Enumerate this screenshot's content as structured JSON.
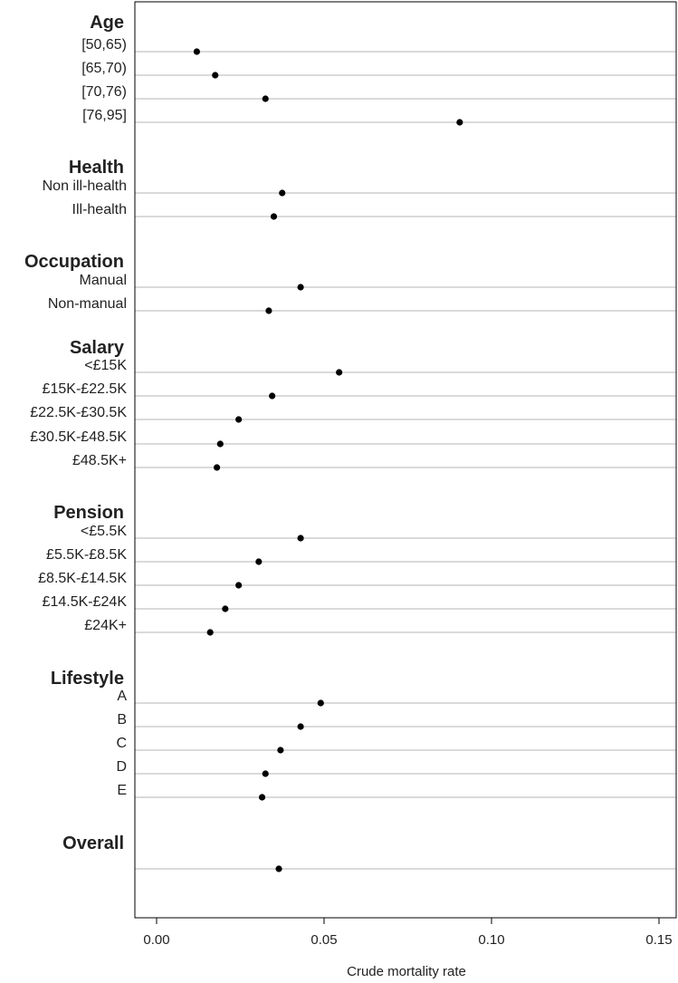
{
  "chart_data": {
    "type": "scatter",
    "xlabel": "Crude mortality rate",
    "xlim": [
      -0.006,
      0.155
    ],
    "xticks": [
      "0.00",
      "0.05",
      "0.10",
      "0.15"
    ],
    "xtick_values": [
      0,
      0.05,
      0.1,
      0.15
    ],
    "grid": "horizontal reference line per row",
    "groups": [
      {
        "title": "Age",
        "rows": [
          {
            "label": "[50,65)",
            "value": 0.012
          },
          {
            "label": "[65,70)",
            "value": 0.0175
          },
          {
            "label": "[70,76)",
            "value": 0.0325
          },
          {
            "label": "[76,95]",
            "value": 0.0905
          }
        ]
      },
      {
        "title": "Health",
        "rows": [
          {
            "label": "Non ill-health",
            "value": 0.0375
          },
          {
            "label": "Ill-health",
            "value": 0.035
          }
        ]
      },
      {
        "title": "Occupation",
        "rows": [
          {
            "label": "Manual",
            "value": 0.043
          },
          {
            "label": "Non-manual",
            "value": 0.0335
          }
        ]
      },
      {
        "title": "Salary",
        "rows": [
          {
            "label": "<£15K",
            "value": 0.0545
          },
          {
            "label": "£15K-£22.5K",
            "value": 0.0345
          },
          {
            "label": "£22.5K-£30.5K",
            "value": 0.0245
          },
          {
            "label": "£30.5K-£48.5K",
            "value": 0.019
          },
          {
            "label": "£48.5K+",
            "value": 0.018
          }
        ]
      },
      {
        "title": "Pension",
        "rows": [
          {
            "label": "<£5.5K",
            "value": 0.043
          },
          {
            "label": "£5.5K-£8.5K",
            "value": 0.0305
          },
          {
            "label": "£8.5K-£14.5K",
            "value": 0.0245
          },
          {
            "label": "£14.5K-£24K",
            "value": 0.0205
          },
          {
            "label": "£24K+",
            "value": 0.016
          }
        ]
      },
      {
        "title": "Lifestyle",
        "rows": [
          {
            "label": "A",
            "value": 0.049
          },
          {
            "label": "B",
            "value": 0.043
          },
          {
            "label": "C",
            "value": 0.037
          },
          {
            "label": "D",
            "value": 0.0325
          },
          {
            "label": "E",
            "value": 0.0315
          }
        ]
      },
      {
        "title": "Overall",
        "rows": [
          {
            "label": "",
            "value": 0.0365
          }
        ]
      }
    ]
  }
}
